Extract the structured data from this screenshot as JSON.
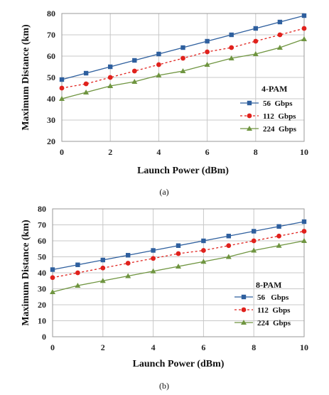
{
  "chart_data": [
    {
      "type": "line",
      "title": "",
      "panel_caption": "(a)",
      "legend_title": "4-PAM",
      "legend_position": "right-center",
      "xlabel": "Launch Power (dBm)",
      "ylabel": "Maximum Distance (km)",
      "xlim": [
        0,
        10
      ],
      "ylim": [
        20,
        80
      ],
      "xticks": [
        "0",
        "2",
        "4",
        "6",
        "8",
        "10"
      ],
      "yticks": [
        "20",
        "30",
        "40",
        "50",
        "60",
        "70",
        "80"
      ],
      "grid": true,
      "x": [
        0,
        1,
        2,
        3,
        4,
        5,
        6,
        7,
        8,
        9,
        10
      ],
      "series": [
        {
          "name": "56  Gbps",
          "values": [
            49,
            52,
            55,
            58,
            61,
            64,
            67,
            70,
            73,
            76,
            79
          ],
          "color": "#2e5f9e",
          "marker": "square",
          "dash": "solid"
        },
        {
          "name": "112  Gbps",
          "values": [
            45,
            47,
            50,
            53,
            56,
            59,
            62,
            64,
            67,
            70,
            73
          ],
          "color": "#e0211c",
          "marker": "circle",
          "dash": "dashed"
        },
        {
          "name": "224  Gbps",
          "values": [
            40,
            43,
            46,
            48,
            51,
            53,
            56,
            59,
            61,
            64,
            68
          ],
          "color": "#6f9540",
          "marker": "triangle",
          "dash": "solid"
        }
      ]
    },
    {
      "type": "line",
      "title": "",
      "panel_caption": "(b)",
      "legend_title": "8-PAM",
      "legend_position": "bottom-right",
      "xlabel": "Launch Power (dBm)",
      "ylabel": "Maximum Distance (km)",
      "xlim": [
        0,
        10
      ],
      "ylim": [
        0,
        80
      ],
      "xticks": [
        "0",
        "2",
        "4",
        "6",
        "8",
        "10"
      ],
      "yticks": [
        "0",
        "10",
        "20",
        "30",
        "40",
        "50",
        "60",
        "70",
        "80"
      ],
      "grid": true,
      "x": [
        0,
        1,
        2,
        3,
        4,
        5,
        6,
        7,
        8,
        9,
        10
      ],
      "series": [
        {
          "name": "56   Gbps",
          "values": [
            42,
            45,
            48,
            51,
            54,
            57,
            60,
            63,
            66,
            69,
            72
          ],
          "color": "#2e5f9e",
          "marker": "square",
          "dash": "solid"
        },
        {
          "name": "112  Gbps",
          "values": [
            37,
            40,
            43,
            46,
            49,
            52,
            54,
            57,
            60,
            63,
            66
          ],
          "color": "#e0211c",
          "marker": "circle",
          "dash": "dashed"
        },
        {
          "name": "224  Gbps",
          "values": [
            28,
            32,
            35,
            38,
            41,
            44,
            47,
            50,
            54,
            57,
            60
          ],
          "color": "#6f9540",
          "marker": "triangle",
          "dash": "solid"
        }
      ]
    }
  ]
}
